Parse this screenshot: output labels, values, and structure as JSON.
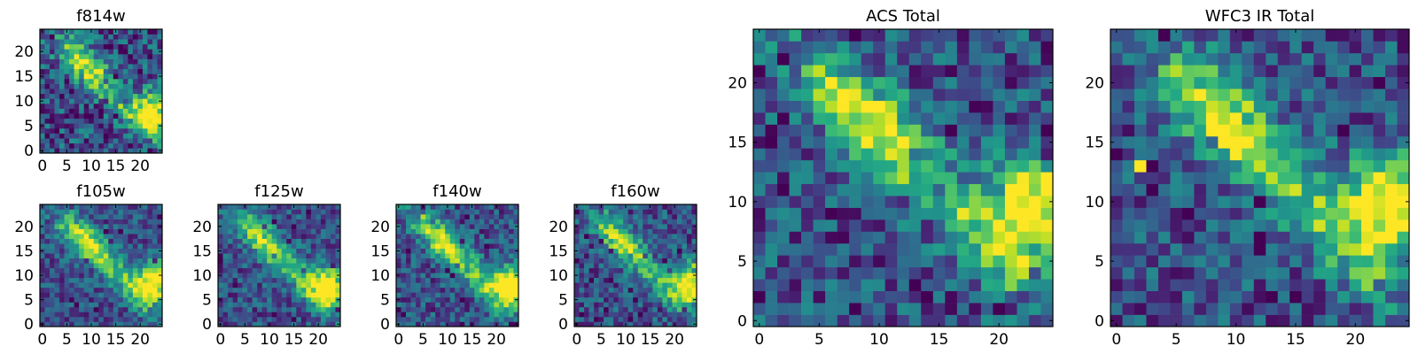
{
  "chart_data": [
    {
      "type": "heatmap",
      "title": "f814w",
      "colormap": "viridis",
      "xlim": [
        0,
        24
      ],
      "ylim": [
        0,
        24
      ],
      "xticks": [
        0,
        5,
        10,
        15,
        20
      ],
      "yticks": [
        0,
        5,
        10,
        15,
        20
      ],
      "noise": 0.34,
      "irregularity": 0.8,
      "seed": 11,
      "features": {
        "ridge": 0.72,
        "hotspot": 1.0,
        "hotspot_center": [
          23,
          8
        ]
      },
      "hot_pixels": []
    },
    {
      "type": "heatmap",
      "title": "f105w",
      "colormap": "viridis",
      "xlim": [
        0,
        24
      ],
      "ylim": [
        0,
        24
      ],
      "xticks": [
        0,
        5,
        10,
        15,
        20
      ],
      "yticks": [
        0,
        5,
        10,
        15,
        20
      ],
      "noise": 0.24,
      "irregularity": 0.6,
      "seed": 23,
      "features": {
        "ridge": 0.78,
        "hotspot": 1.0,
        "hotspot_center": [
          23,
          9
        ]
      },
      "hot_pixels": []
    },
    {
      "type": "heatmap",
      "title": "f125w",
      "colormap": "viridis",
      "xlim": [
        0,
        24
      ],
      "ylim": [
        0,
        24
      ],
      "xticks": [
        0,
        5,
        10,
        15,
        20
      ],
      "yticks": [
        0,
        5,
        10,
        15,
        20
      ],
      "noise": 0.25,
      "irregularity": 0.6,
      "seed": 37,
      "features": {
        "ridge": 0.74,
        "hotspot": 1.0,
        "hotspot_center": [
          22,
          8
        ]
      },
      "hot_pixels": []
    },
    {
      "type": "heatmap",
      "title": "f140w",
      "colormap": "viridis",
      "xlim": [
        0,
        24
      ],
      "ylim": [
        0,
        24
      ],
      "xticks": [
        0,
        5,
        10,
        15,
        20
      ],
      "yticks": [
        0,
        5,
        10,
        15,
        20
      ],
      "noise": 0.26,
      "irregularity": 0.65,
      "seed": 41,
      "features": {
        "ridge": 0.78,
        "hotspot": 1.0,
        "hotspot_center": [
          23,
          8
        ]
      },
      "hot_pixels": []
    },
    {
      "type": "heatmap",
      "title": "f160w",
      "colormap": "viridis",
      "xlim": [
        0,
        24
      ],
      "ylim": [
        0,
        24
      ],
      "xticks": [
        0,
        5,
        10,
        15,
        20
      ],
      "yticks": [
        0,
        5,
        10,
        15,
        20
      ],
      "noise": 0.26,
      "irregularity": 0.7,
      "seed": 53,
      "features": {
        "ridge": 0.72,
        "hotspot": 1.0,
        "hotspot_center": [
          24,
          9
        ]
      },
      "hot_pixels": []
    },
    {
      "type": "heatmap",
      "title": "ACS Total",
      "colormap": "viridis",
      "xlim": [
        0,
        24
      ],
      "ylim": [
        0,
        24
      ],
      "xticks": [
        0,
        5,
        10,
        15,
        20
      ],
      "yticks": [
        0,
        5,
        10,
        15,
        20
      ],
      "noise": 0.3,
      "irregularity": 0.75,
      "seed": 67,
      "features": {
        "ridge": 0.78,
        "hotspot": 1.0,
        "hotspot_center": [
          23,
          10
        ]
      },
      "hot_pixels": []
    },
    {
      "type": "heatmap",
      "title": "WFC3 IR Total",
      "colormap": "viridis",
      "xlim": [
        0,
        24
      ],
      "ylim": [
        0,
        24
      ],
      "xticks": [
        0,
        5,
        10,
        15,
        20
      ],
      "yticks": [
        0,
        5,
        10,
        15,
        20
      ],
      "noise": 0.28,
      "irregularity": 0.75,
      "seed": 79,
      "features": {
        "ridge": 0.8,
        "hotspot": 1.0,
        "hotspot_center": [
          23,
          10
        ]
      },
      "hot_pixels": [
        {
          "x": 2,
          "y": 13,
          "value": 1.0
        },
        {
          "x": 3,
          "y": 13,
          "value": 0.0
        }
      ]
    }
  ]
}
